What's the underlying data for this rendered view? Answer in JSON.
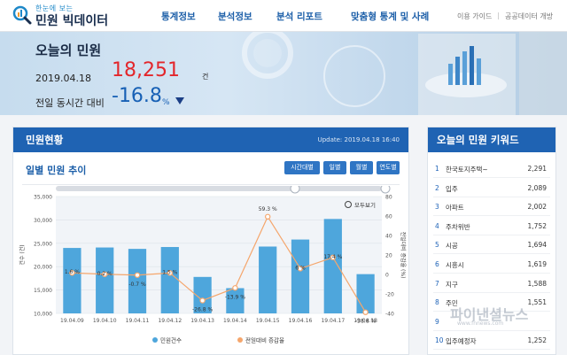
{
  "header": {
    "logo_small": "한눈에 보는",
    "logo_big": "민원 빅데이터",
    "nav": [
      "통계정보",
      "분석정보",
      "분석 리포트",
      "맞춤형 통계 및 사례"
    ],
    "util": [
      "이용 가이드",
      "공공데이터 개방"
    ]
  },
  "hero": {
    "title": "오늘의 민원",
    "date": "2019.04.18",
    "count": "18,251",
    "count_unit": "건",
    "compare_label": "전일 동시간 대비",
    "change": "-16.8",
    "change_unit": "%"
  },
  "panel": {
    "title": "민원현황",
    "update": "Update: 2019.04.18 16:40",
    "subtitle": "일별 민원 추이",
    "tabs": [
      "시간대별",
      "일별",
      "월별",
      "연도별"
    ],
    "zoom_label": "모두보기"
  },
  "chart_data": {
    "type": "bar",
    "categories": [
      "19.04.09",
      "19.04.10",
      "19.04.11",
      "19.04.12",
      "19.04.13",
      "19.04.14",
      "19.04.15",
      "19.04.16",
      "19.04.17",
      "19.04.18"
    ],
    "series": [
      {
        "name": "민원건수",
        "type": "bar",
        "axis": "left",
        "values": [
          24000,
          24100,
          23800,
          24200,
          17800,
          15400,
          24300,
          25800,
          30200,
          18400
        ]
      },
      {
        "name": "전일대비 증감율",
        "type": "line",
        "axis": "right",
        "values": [
          1.6,
          0.2,
          -0.7,
          1.5,
          -26.8,
          -13.9,
          59.3,
          6,
          17.4,
          -38.8
        ],
        "labels": [
          "1.6 %",
          "0.2 %",
          "-0.7 %",
          "1.5 %",
          "-26.8 %",
          "-13.9 %",
          "59.3 %",
          "6 %",
          "17.4 %",
          "-38.8 %"
        ]
      }
    ],
    "ylabel": "건수 (건)",
    "y2label": "전일대비 증감율 (%)",
    "ylim": [
      10000,
      35000
    ],
    "y2lim": [
      -40,
      80
    ],
    "yticks": [
      "10,000",
      "15,000",
      "20,000",
      "25,000",
      "30,000",
      "35,000"
    ],
    "y2ticks": [
      "-40",
      "-20",
      "0",
      "20",
      "40",
      "60",
      "80"
    ],
    "legend": "bottom",
    "colors": {
      "bar": "#4ea6dc",
      "line": "#f5a66c",
      "background": "#f1f4f8"
    }
  },
  "keywords": {
    "title": "오늘의 민원 키워드",
    "items": [
      {
        "rank": "1",
        "name": "한국토지주택~",
        "count": "2,291"
      },
      {
        "rank": "2",
        "name": "입주",
        "count": "2,089"
      },
      {
        "rank": "3",
        "name": "아파트",
        "count": "2,002"
      },
      {
        "rank": "4",
        "name": "주차위반",
        "count": "1,752"
      },
      {
        "rank": "5",
        "name": "시공",
        "count": "1,694"
      },
      {
        "rank": "6",
        "name": "시흥시",
        "count": "1,619"
      },
      {
        "rank": "7",
        "name": "지구",
        "count": "1,588"
      },
      {
        "rank": "8",
        "name": "주민",
        "count": "1,551"
      },
      {
        "rank": "9",
        "name": "",
        "count": ""
      },
      {
        "rank": "10",
        "name": "입주예정자",
        "count": "1,252"
      }
    ]
  },
  "watermark": {
    "text": "파이낸셜뉴스",
    "url": "www.fnnews.com"
  }
}
